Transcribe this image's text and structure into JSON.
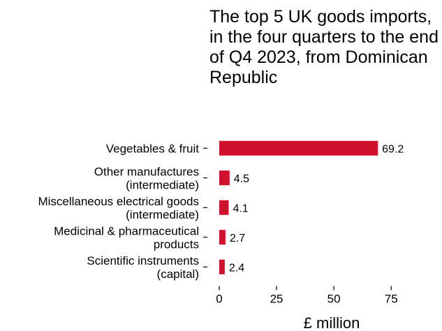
{
  "chart_data": {
    "type": "bar",
    "orientation": "horizontal",
    "title": "The top 5 UK goods imports, in the four quarters to the end of Q4 2023, from Dominican Republic",
    "categories": [
      [
        "Vegetables & fruit"
      ],
      [
        "Other manufactures",
        "(intermediate)"
      ],
      [
        "Miscellaneous electrical goods",
        "(intermediate)"
      ],
      [
        "Medicinal & pharmaceutical",
        "products"
      ],
      [
        "Scientific instruments",
        "(capital)"
      ]
    ],
    "values": [
      69.2,
      4.5,
      4.1,
      2.7,
      2.4
    ],
    "value_labels": [
      "69.2",
      "4.5",
      "4.1",
      "2.7",
      "2.4"
    ],
    "xlabel": "£ million",
    "ylabel": "",
    "xlim": [
      0,
      92
    ],
    "xticks": [
      0,
      25,
      50,
      75
    ],
    "xtick_labels": [
      "0",
      "25",
      "50",
      "75"
    ],
    "bar_color": "#d0112b",
    "grid": false
  }
}
